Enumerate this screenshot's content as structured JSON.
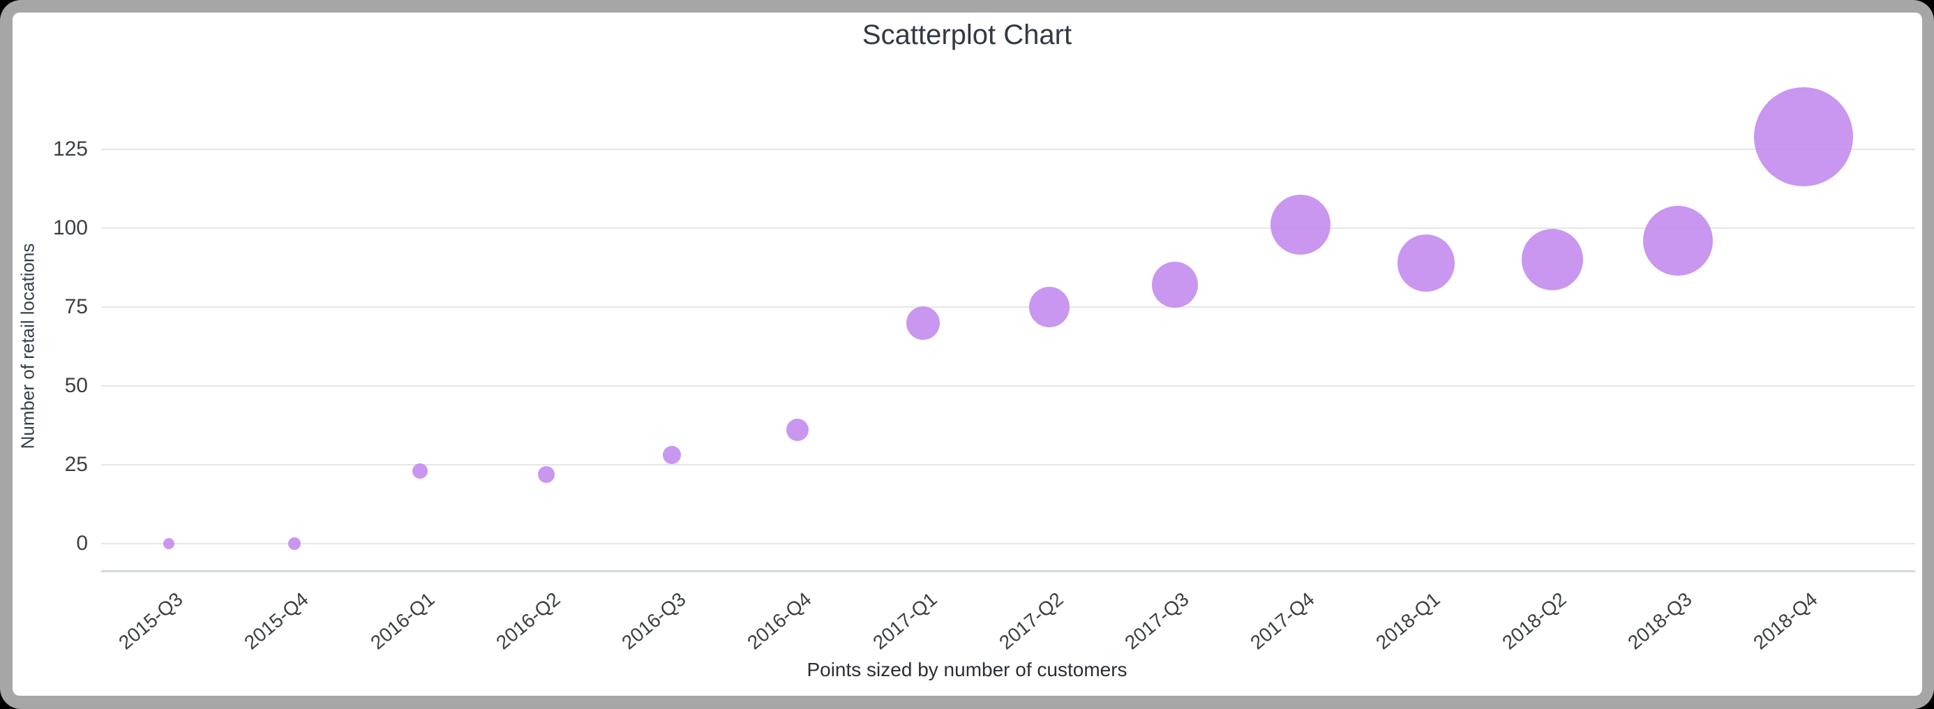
{
  "window": {
    "background_color": "#000000",
    "frame_color": "#a6a6a6",
    "card_color": "#ffffff"
  },
  "colors": {
    "bubble_fill": "#c997f0",
    "gridline": "#e6e6e6",
    "axis_baseline": "#d3d9e8",
    "title_text": "#323942",
    "tick_text": "#3c4043"
  },
  "chart_data": {
    "type": "scatter",
    "subtype": "bubble",
    "title": "Scatterplot Chart",
    "ylabel": "Number of retail locations",
    "xlabel": "",
    "caption": "Points sized by number of customers",
    "legend_position": "none",
    "grid": true,
    "y_ticks": [
      0,
      25,
      50,
      75,
      100,
      125
    ],
    "ylim": [
      -9,
      140
    ],
    "categories": [
      "2015-Q3",
      "2015-Q4",
      "2016-Q1",
      "2016-Q2",
      "2016-Q3",
      "2016-Q4",
      "2017-Q1",
      "2017-Q2",
      "2017-Q3",
      "2017-Q4",
      "2018-Q1",
      "2018-Q2",
      "2018-Q3",
      "2018-Q4"
    ],
    "series": [
      {
        "name": "Number of retail locations",
        "values": [
          0,
          0,
          23,
          22,
          28,
          36,
          70,
          75,
          82,
          101,
          89,
          90,
          96,
          129
        ],
        "point_radius_px": [
          8,
          9,
          11,
          12,
          13,
          16,
          24,
          29,
          33,
          43,
          41,
          44,
          50,
          71
        ],
        "size_encodes": "number of customers"
      }
    ]
  }
}
